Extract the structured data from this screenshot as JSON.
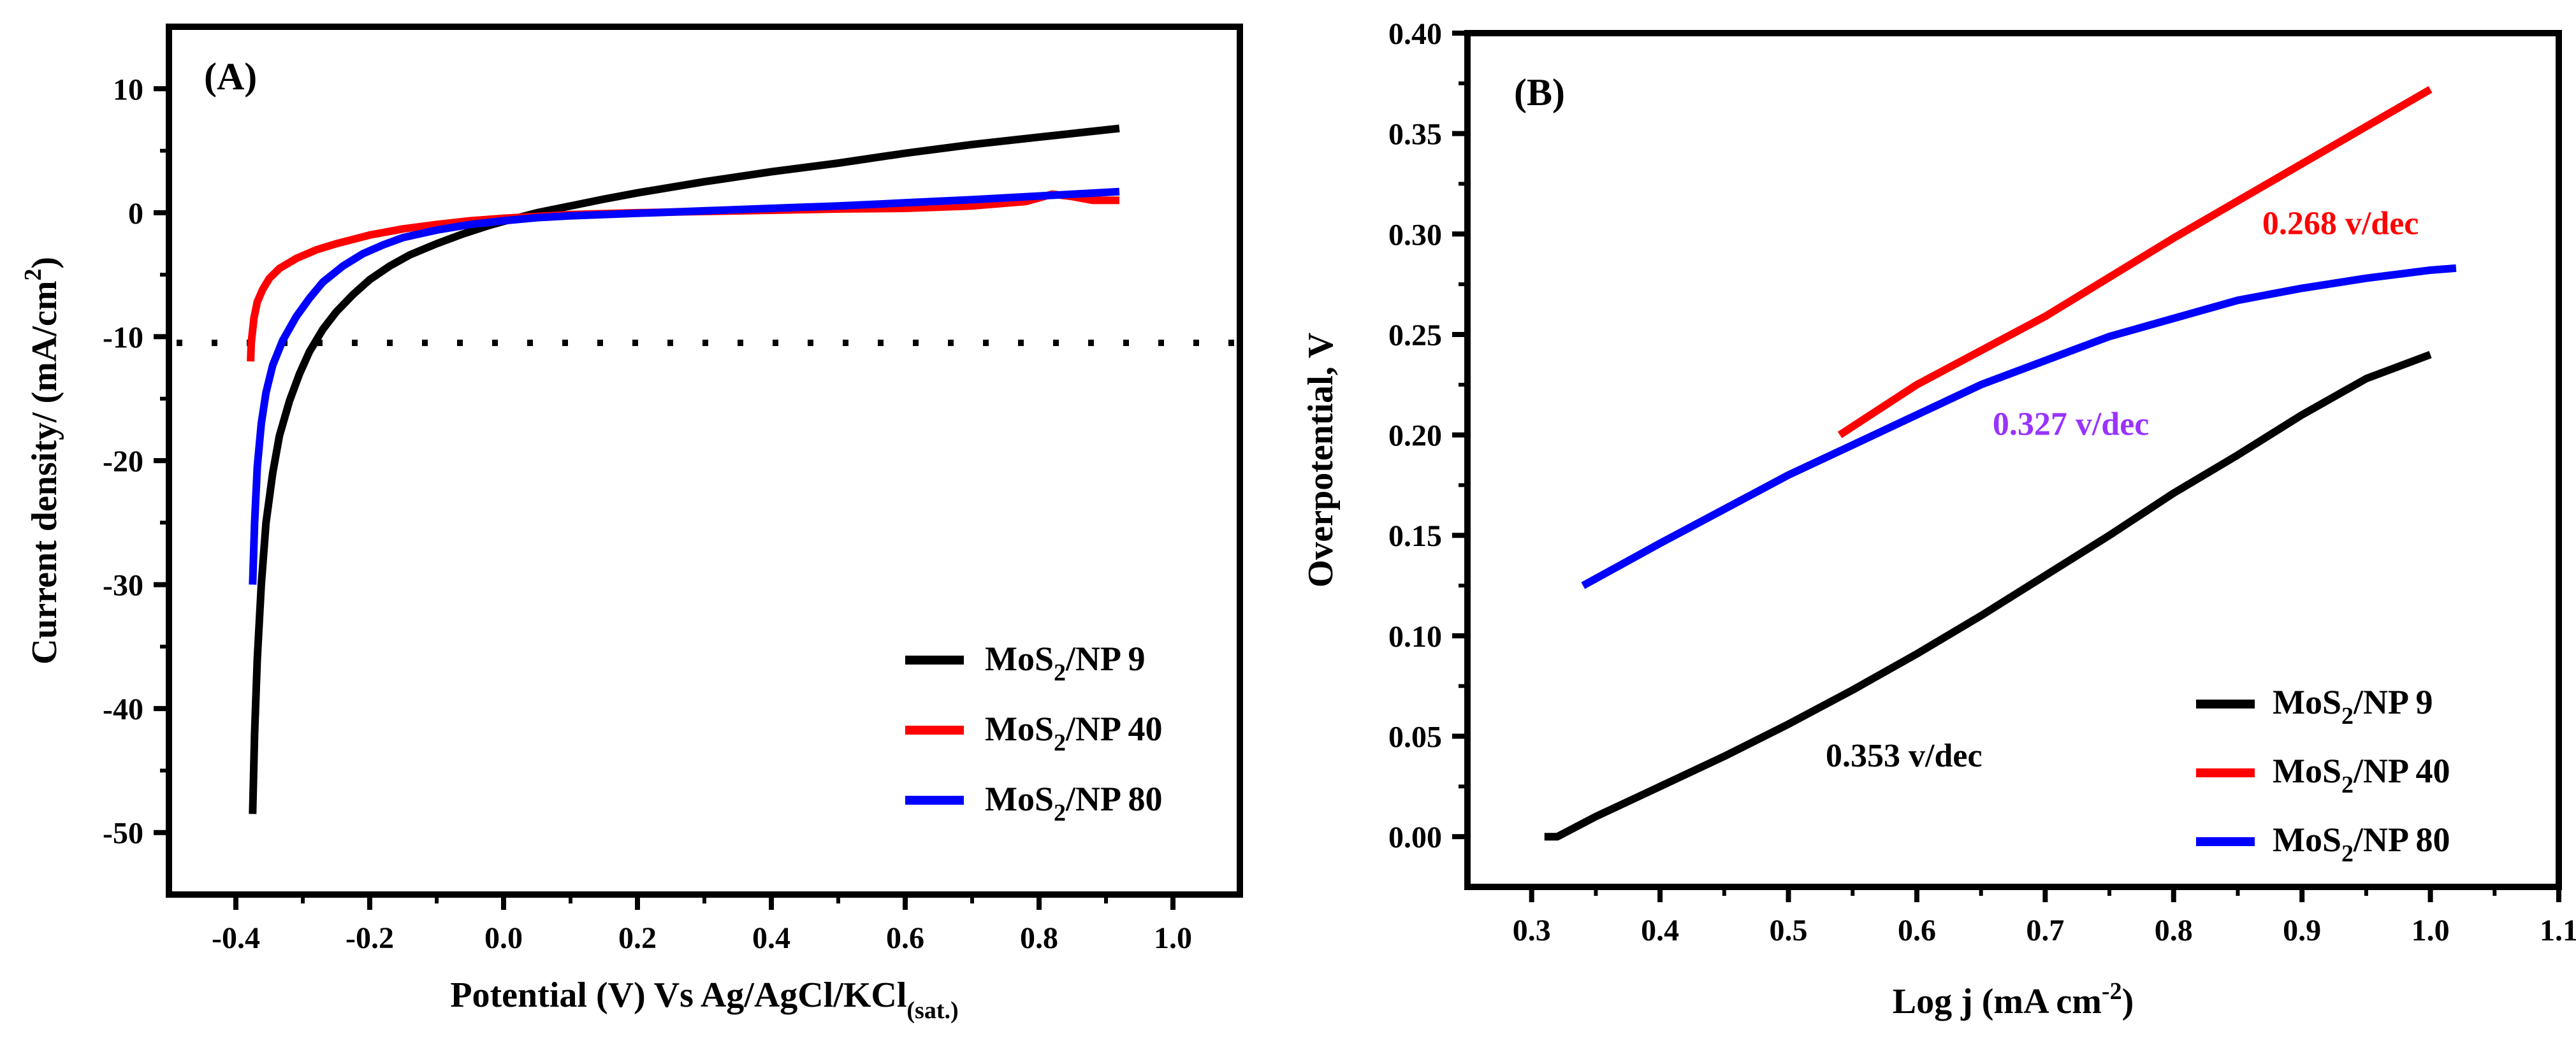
{
  "colors": {
    "black": "#000000",
    "red": "#ff0000",
    "blue": "#0000ff",
    "purple": "#9933ff"
  },
  "chart_data": [
    {
      "type": "line",
      "panel_label": "(A)",
      "xlabel": "Potential (V) Vs Ag/AgCl/KCl",
      "xlabel_sub": "(sat.)",
      "ylabel": "Current density/ (mA/cm",
      "ylabel_sup": "2",
      "ylabel_end": ")",
      "xlim": [
        -0.5,
        1.1
      ],
      "ylim": [
        -55,
        15
      ],
      "xticks": [
        -0.4,
        -0.2,
        0.0,
        0.2,
        0.4,
        0.6,
        0.8,
        1.0
      ],
      "xtick_labels": [
        "-0.4",
        "-0.2",
        "0.0",
        "0.2",
        "0.4",
        "0.6",
        "0.8",
        "1.0"
      ],
      "yticks": [
        -50,
        -40,
        -30,
        -20,
        -10,
        0,
        10
      ],
      "ytick_labels": [
        "-50",
        "-40",
        "-30",
        "-20",
        "-10",
        "0",
        "10"
      ],
      "reference_line": {
        "y": -10.5,
        "x_range": [
          -0.5,
          1.1
        ],
        "style": "dotted"
      },
      "legend_position": "bottom-right",
      "series": [
        {
          "name_prefix": "MoS",
          "name_sub": "2",
          "name_suffix": "/NP 9",
          "color": "#000000",
          "x": [
            -0.375,
            -0.372,
            -0.368,
            -0.362,
            -0.355,
            -0.345,
            -0.335,
            -0.32,
            -0.305,
            -0.29,
            -0.27,
            -0.25,
            -0.225,
            -0.2,
            -0.17,
            -0.14,
            -0.1,
            -0.06,
            -0.02,
            0.0,
            0.05,
            0.1,
            0.15,
            0.2,
            0.3,
            0.4,
            0.5,
            0.6,
            0.7,
            0.8,
            0.92
          ],
          "y": [
            -48.5,
            -42,
            -36,
            -30,
            -25,
            -21,
            -18,
            -15.2,
            -13,
            -11.2,
            -9.4,
            -8,
            -6.6,
            -5.4,
            -4.3,
            -3.4,
            -2.5,
            -1.7,
            -1.0,
            -0.7,
            0.0,
            0.55,
            1.1,
            1.6,
            2.5,
            3.3,
            4.0,
            4.8,
            5.5,
            6.1,
            6.8
          ]
        },
        {
          "name_prefix": "MoS",
          "name_sub": "2",
          "name_suffix": "/NP 40",
          "color": "#ff0000",
          "x": [
            -0.378,
            -0.377,
            -0.373,
            -0.368,
            -0.36,
            -0.35,
            -0.335,
            -0.31,
            -0.28,
            -0.25,
            -0.2,
            -0.15,
            -0.1,
            -0.05,
            0.0,
            0.05,
            0.1,
            0.2,
            0.3,
            0.4,
            0.5,
            0.6,
            0.7,
            0.78,
            0.82,
            0.85,
            0.88,
            0.92
          ],
          "y": [
            -12,
            -10.5,
            -8.5,
            -7.2,
            -6.2,
            -5.3,
            -4.5,
            -3.7,
            -3.0,
            -2.5,
            -1.8,
            -1.3,
            -0.95,
            -0.65,
            -0.45,
            -0.3,
            -0.15,
            0.0,
            0.1,
            0.2,
            0.3,
            0.35,
            0.55,
            0.9,
            1.5,
            1.3,
            1.0,
            1.0
          ]
        },
        {
          "name_prefix": "MoS",
          "name_sub": "2",
          "name_suffix": "/NP 80",
          "color": "#0000ff",
          "x": [
            -0.375,
            -0.372,
            -0.368,
            -0.362,
            -0.355,
            -0.345,
            -0.33,
            -0.31,
            -0.29,
            -0.27,
            -0.24,
            -0.21,
            -0.18,
            -0.15,
            -0.1,
            -0.05,
            0.0,
            0.05,
            0.1,
            0.2,
            0.3,
            0.4,
            0.5,
            0.6,
            0.7,
            0.8,
            0.92
          ],
          "y": [
            -30,
            -25,
            -20.5,
            -17,
            -14.5,
            -12.3,
            -10.3,
            -8.4,
            -6.9,
            -5.6,
            -4.3,
            -3.3,
            -2.6,
            -2.0,
            -1.4,
            -0.95,
            -0.65,
            -0.4,
            -0.25,
            -0.05,
            0.15,
            0.35,
            0.55,
            0.8,
            1.05,
            1.35,
            1.7
          ]
        }
      ]
    },
    {
      "type": "line",
      "panel_label": "(B)",
      "xlabel": "Log j (mA cm",
      "xlabel_sup": "-2",
      "xlabel_end": ")",
      "ylabel": "Overpotential, V",
      "xlim": [
        0.25,
        1.1
      ],
      "ylim": [
        -0.025,
        0.4
      ],
      "xticks": [
        0.3,
        0.4,
        0.5,
        0.6,
        0.7,
        0.8,
        0.9,
        1.0,
        1.1
      ],
      "xtick_labels": [
        "0.3",
        "0.4",
        "0.5",
        "0.6",
        "0.7",
        "0.8",
        "0.9",
        "1.0",
        "1.1"
      ],
      "yticks": [
        0.0,
        0.05,
        0.1,
        0.15,
        0.2,
        0.25,
        0.3,
        0.35,
        0.4
      ],
      "ytick_labels": [
        "0.00",
        "0.05",
        "0.10",
        "0.15",
        "0.20",
        "0.25",
        "0.30",
        "0.35",
        "0.40"
      ],
      "legend_position": "bottom-right",
      "annotations": [
        {
          "text": "0.268 v/dec",
          "x": 0.93,
          "y": 0.3,
          "color": "#ff0000"
        },
        {
          "text": "0.327 v/dec",
          "x": 0.72,
          "y": 0.2,
          "color": "#9933ff"
        },
        {
          "text": "0.353 v/dec",
          "x": 0.59,
          "y": 0.035,
          "color": "#000000"
        }
      ],
      "series": [
        {
          "name_prefix": "MoS",
          "name_sub": "2",
          "name_suffix": "/NP 9",
          "color": "#000000",
          "x": [
            0.31,
            0.32,
            0.35,
            0.4,
            0.45,
            0.5,
            0.55,
            0.6,
            0.65,
            0.7,
            0.75,
            0.8,
            0.85,
            0.9,
            0.95,
            1.0
          ],
          "y": [
            0.0,
            0.0,
            0.01,
            0.025,
            0.04,
            0.056,
            0.073,
            0.091,
            0.11,
            0.13,
            0.15,
            0.171,
            0.19,
            0.21,
            0.228,
            0.24
          ]
        },
        {
          "name_prefix": "MoS",
          "name_sub": "2",
          "name_suffix": "/NP 40",
          "color": "#ff0000",
          "x": [
            0.54,
            0.6,
            0.7,
            0.8,
            0.9,
            1.0
          ],
          "y": [
            0.2,
            0.225,
            0.259,
            0.298,
            0.335,
            0.372
          ]
        },
        {
          "name_prefix": "MoS",
          "name_sub": "2",
          "name_suffix": "/NP 80",
          "color": "#0000ff",
          "x": [
            0.34,
            0.4,
            0.45,
            0.5,
            0.55,
            0.6,
            0.65,
            0.7,
            0.75,
            0.8,
            0.85,
            0.9,
            0.95,
            1.0,
            1.02
          ],
          "y": [
            0.125,
            0.146,
            0.163,
            0.18,
            0.195,
            0.21,
            0.225,
            0.237,
            0.249,
            0.258,
            0.267,
            0.273,
            0.278,
            0.282,
            0.283
          ]
        }
      ]
    }
  ]
}
